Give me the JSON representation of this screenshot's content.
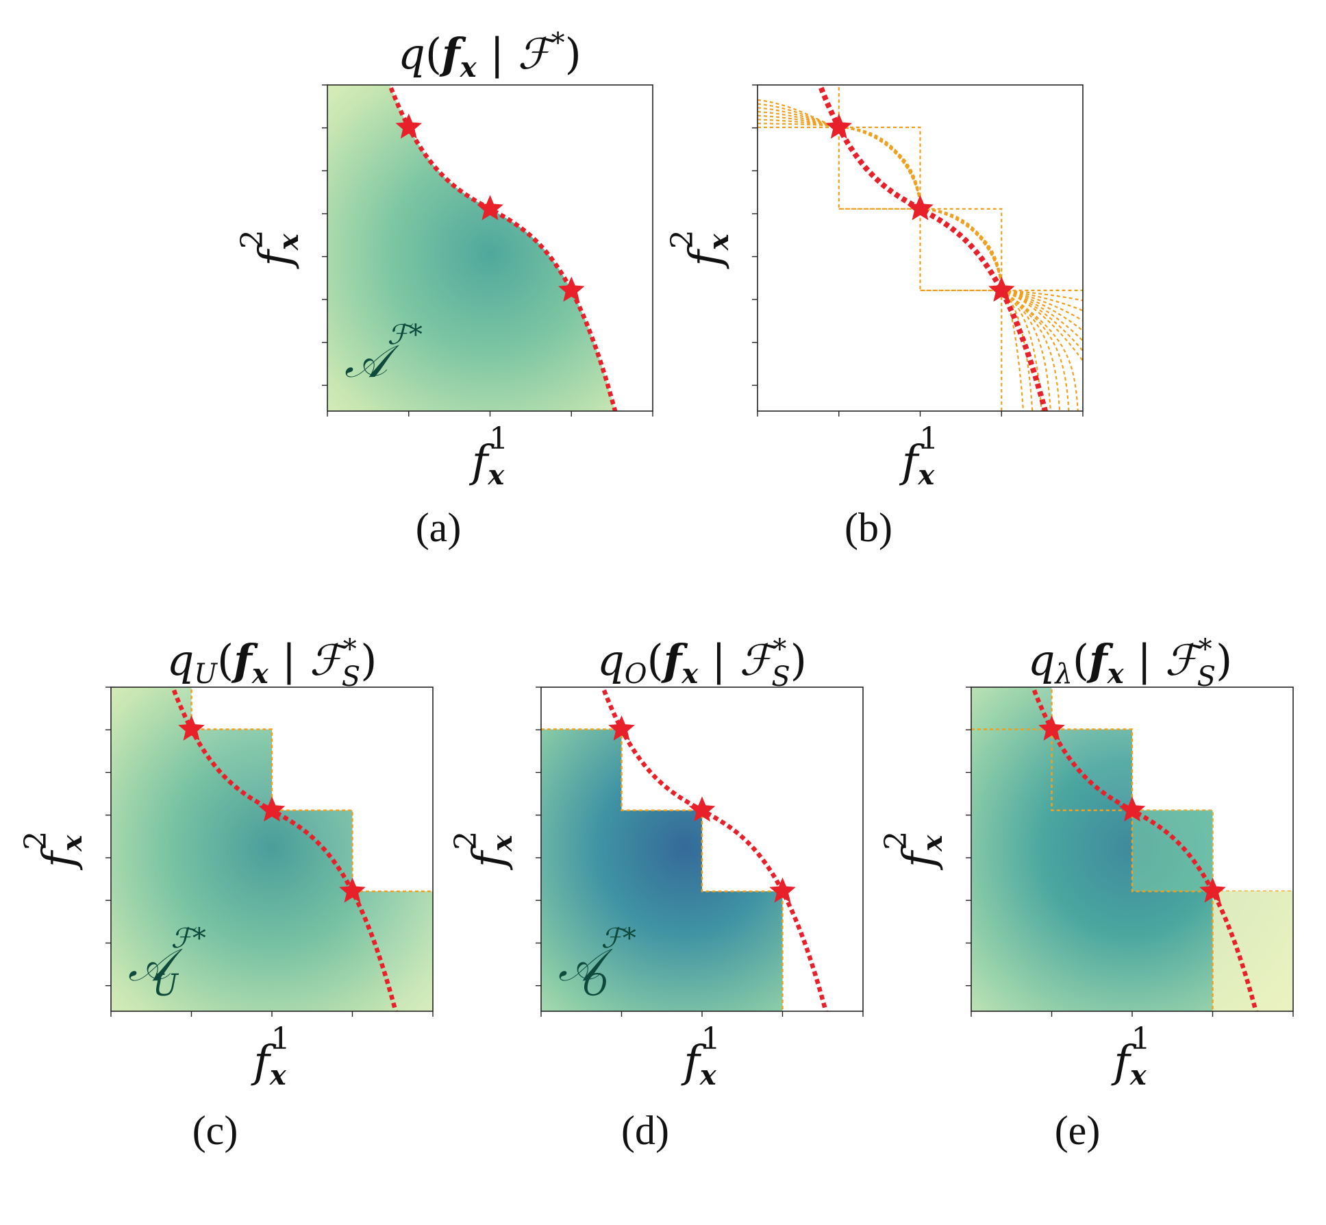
{
  "panels": [
    {
      "id": "a",
      "caption": "(a)",
      "title": {
        "base": "q",
        "sub": "",
        "body": "f",
        "bsub": "x",
        "mid": " | ",
        "set": "ℱ",
        "sup": "*",
        "ssub": ""
      },
      "xlabel": {
        "base": "f",
        "sub": "x",
        "sup": "1"
      },
      "ylabel": {
        "base": "f",
        "sub": "x",
        "sup": "2"
      },
      "region_label": {
        "base": "𝒜",
        "sup": "ℱ*",
        "sub": ""
      },
      "stars": [
        [
          0.25,
          0.87
        ],
        [
          0.5,
          0.62
        ],
        [
          0.75,
          0.37
        ]
      ]
    },
    {
      "id": "b",
      "caption": "(b)",
      "xlabel": {
        "base": "f",
        "sub": "x",
        "sup": "1"
      },
      "ylabel": {
        "base": "f",
        "sub": "x",
        "sup": "2"
      },
      "stars": [
        [
          0.25,
          0.87
        ],
        [
          0.5,
          0.62
        ],
        [
          0.75,
          0.37
        ]
      ]
    },
    {
      "id": "c",
      "caption": "(c)",
      "title": {
        "base": "q",
        "sub": "U",
        "body": "f",
        "bsub": "x",
        "mid": " | ",
        "set": "ℱ",
        "sup": "*",
        "ssub": "S"
      },
      "xlabel": {
        "base": "f",
        "sub": "x",
        "sup": "1"
      },
      "ylabel": {
        "base": "f",
        "sub": "x",
        "sup": "2"
      },
      "region_label": {
        "base": "𝒜",
        "sup": "ℱ*",
        "sub": "U"
      },
      "stars": [
        [
          0.25,
          0.87
        ],
        [
          0.5,
          0.62
        ],
        [
          0.75,
          0.37
        ]
      ]
    },
    {
      "id": "d",
      "caption": "(d)",
      "title": {
        "base": "q",
        "sub": "O",
        "body": "f",
        "bsub": "x",
        "mid": " | ",
        "set": "ℱ",
        "sup": "*",
        "ssub": "S"
      },
      "xlabel": {
        "base": "f",
        "sub": "x",
        "sup": "1"
      },
      "ylabel": {
        "base": "f",
        "sub": "x",
        "sup": "2"
      },
      "region_label": {
        "base": "𝒜",
        "sup": "ℱ*",
        "sub": "O"
      },
      "stars": [
        [
          0.25,
          0.87
        ],
        [
          0.5,
          0.62
        ],
        [
          0.75,
          0.37
        ]
      ]
    },
    {
      "id": "e",
      "caption": "(e)",
      "title": {
        "base": "q",
        "sub": "λ",
        "body": "f",
        "bsub": "x",
        "mid": " | ",
        "set": "ℱ",
        "sup": "*",
        "ssub": "S"
      },
      "xlabel": {
        "base": "f",
        "sub": "x",
        "sup": "1"
      },
      "ylabel": {
        "base": "f",
        "sub": "x",
        "sup": "2"
      },
      "stars": [
        [
          0.25,
          0.87
        ],
        [
          0.5,
          0.62
        ],
        [
          0.75,
          0.37
        ]
      ]
    }
  ],
  "colors": {
    "front_line": "#e8202a",
    "star": "#e8202a",
    "box_line": "#f0a020",
    "density_center": "#4fa89c",
    "density_center_dark": "#356a99",
    "density_edge": "#f7f7c4",
    "region_label": "#0e4a3c"
  }
}
